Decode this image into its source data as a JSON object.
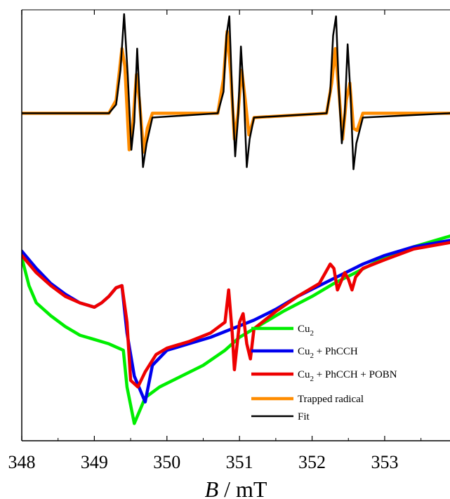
{
  "chart_data": {
    "type": "line",
    "xlabel": "B / mT",
    "xlabel_italic": "B",
    "xlabel_rest": " / mT",
    "xlim": [
      348,
      353.9
    ],
    "ylim": [
      -1.0,
      1.0
    ],
    "x_ticks": [
      348,
      349,
      350,
      351,
      352,
      353
    ],
    "y_ticks_labeled": false,
    "grid": false,
    "legend_position": "bottom-right",
    "legend": [
      {
        "base": "Cu",
        "sub": "2",
        "rest": ""
      },
      {
        "base": "Cu",
        "sub": "2",
        "rest": " + PhCCH"
      },
      {
        "base": "Cu",
        "sub": "2",
        "rest": " + PhCCH + POBN"
      },
      {
        "base": "Trapped radical",
        "sub": "",
        "rest": ""
      },
      {
        "base": "Fit",
        "sub": "",
        "rest": ""
      }
    ],
    "series": [
      {
        "name": "Cu2",
        "color": "#00ee00",
        "x": [
          348.0,
          348.1,
          348.2,
          348.4,
          348.6,
          348.8,
          349.0,
          349.2,
          349.4,
          349.45,
          349.55,
          349.6,
          349.7,
          349.9,
          350.2,
          350.5,
          350.8,
          351.0,
          351.3,
          351.6,
          352.0,
          352.3,
          352.6,
          353.0,
          353.4,
          353.9
        ],
        "y": [
          -0.15,
          -0.28,
          -0.36,
          -0.42,
          -0.47,
          -0.51,
          -0.53,
          -0.55,
          -0.58,
          -0.75,
          -0.92,
          -0.88,
          -0.8,
          -0.75,
          -0.7,
          -0.65,
          -0.58,
          -0.52,
          -0.46,
          -0.4,
          -0.33,
          -0.27,
          -0.22,
          -0.15,
          -0.1,
          -0.05
        ]
      },
      {
        "name": "Cu2 + PhCCH",
        "color": "#0000ee",
        "x": [
          348.0,
          348.2,
          348.4,
          348.6,
          348.8,
          349.0,
          349.1,
          349.2,
          349.3,
          349.38,
          349.45,
          349.55,
          349.7,
          349.8,
          350.0,
          350.3,
          350.6,
          350.9,
          351.2,
          351.5,
          351.8,
          352.1,
          352.4,
          352.7,
          353.0,
          353.4,
          353.9
        ],
        "y": [
          -0.12,
          -0.2,
          -0.27,
          -0.32,
          -0.36,
          -0.38,
          -0.36,
          -0.33,
          -0.29,
          -0.28,
          -0.5,
          -0.7,
          -0.82,
          -0.65,
          -0.58,
          -0.55,
          -0.52,
          -0.48,
          -0.44,
          -0.39,
          -0.33,
          -0.28,
          -0.23,
          -0.18,
          -0.14,
          -0.1,
          -0.07
        ]
      },
      {
        "name": "Cu2 + PhCCH + POBN",
        "color": "#ee0000",
        "x": [
          348.0,
          348.2,
          348.4,
          348.6,
          348.8,
          349.0,
          349.1,
          349.2,
          349.3,
          349.38,
          349.45,
          349.5,
          349.6,
          349.7,
          349.85,
          350.0,
          350.3,
          350.6,
          350.8,
          350.85,
          350.9,
          350.93,
          351.0,
          351.05,
          351.1,
          351.15,
          351.2,
          351.5,
          351.8,
          352.1,
          352.25,
          352.3,
          352.35,
          352.45,
          352.5,
          352.55,
          352.6,
          352.7,
          353.0,
          353.4,
          353.9
        ],
        "y": [
          -0.14,
          -0.22,
          -0.28,
          -0.33,
          -0.36,
          -0.38,
          -0.36,
          -0.33,
          -0.29,
          -0.28,
          -0.45,
          -0.72,
          -0.75,
          -0.68,
          -0.6,
          -0.57,
          -0.54,
          -0.5,
          -0.45,
          -0.3,
          -0.5,
          -0.67,
          -0.45,
          -0.41,
          -0.55,
          -0.62,
          -0.48,
          -0.4,
          -0.33,
          -0.27,
          -0.18,
          -0.2,
          -0.3,
          -0.22,
          -0.25,
          -0.3,
          -0.24,
          -0.2,
          -0.16,
          -0.11,
          -0.08
        ]
      },
      {
        "name": "Trapped radical",
        "color": "#ff8c00",
        "x": [
          348.0,
          349.2,
          349.3,
          349.38,
          349.42,
          349.48,
          349.52,
          349.58,
          349.62,
          349.68,
          349.73,
          349.8,
          350.7,
          350.78,
          350.83,
          350.88,
          350.93,
          350.98,
          351.03,
          351.08,
          351.13,
          351.2,
          352.2,
          352.27,
          352.32,
          352.37,
          352.42,
          352.47,
          352.52,
          352.57,
          352.62,
          352.7,
          353.9
        ],
        "y": [
          0.52,
          0.52,
          0.58,
          0.82,
          0.74,
          0.35,
          0.42,
          0.7,
          0.58,
          0.34,
          0.45,
          0.52,
          0.52,
          0.68,
          0.9,
          0.7,
          0.4,
          0.52,
          0.72,
          0.58,
          0.42,
          0.5,
          0.52,
          0.66,
          0.82,
          0.62,
          0.4,
          0.58,
          0.66,
          0.45,
          0.44,
          0.52,
          0.52
        ]
      },
      {
        "name": "Fit",
        "color": "#000000",
        "x": [
          348.0,
          349.2,
          349.3,
          349.36,
          349.41,
          349.46,
          349.51,
          349.55,
          349.59,
          349.63,
          349.67,
          349.72,
          349.8,
          350.7,
          350.78,
          350.82,
          350.86,
          350.9,
          350.94,
          350.98,
          351.02,
          351.06,
          351.1,
          351.14,
          351.2,
          352.2,
          352.25,
          352.29,
          352.33,
          352.37,
          352.41,
          352.45,
          352.49,
          352.53,
          352.57,
          352.61,
          352.7,
          353.9
        ],
        "y": [
          0.52,
          0.52,
          0.56,
          0.72,
          0.98,
          0.7,
          0.35,
          0.48,
          0.82,
          0.55,
          0.27,
          0.38,
          0.5,
          0.52,
          0.62,
          0.88,
          0.97,
          0.6,
          0.32,
          0.5,
          0.83,
          0.6,
          0.27,
          0.4,
          0.5,
          0.52,
          0.62,
          0.88,
          0.97,
          0.62,
          0.38,
          0.52,
          0.84,
          0.6,
          0.26,
          0.38,
          0.5,
          0.52
        ]
      }
    ]
  }
}
